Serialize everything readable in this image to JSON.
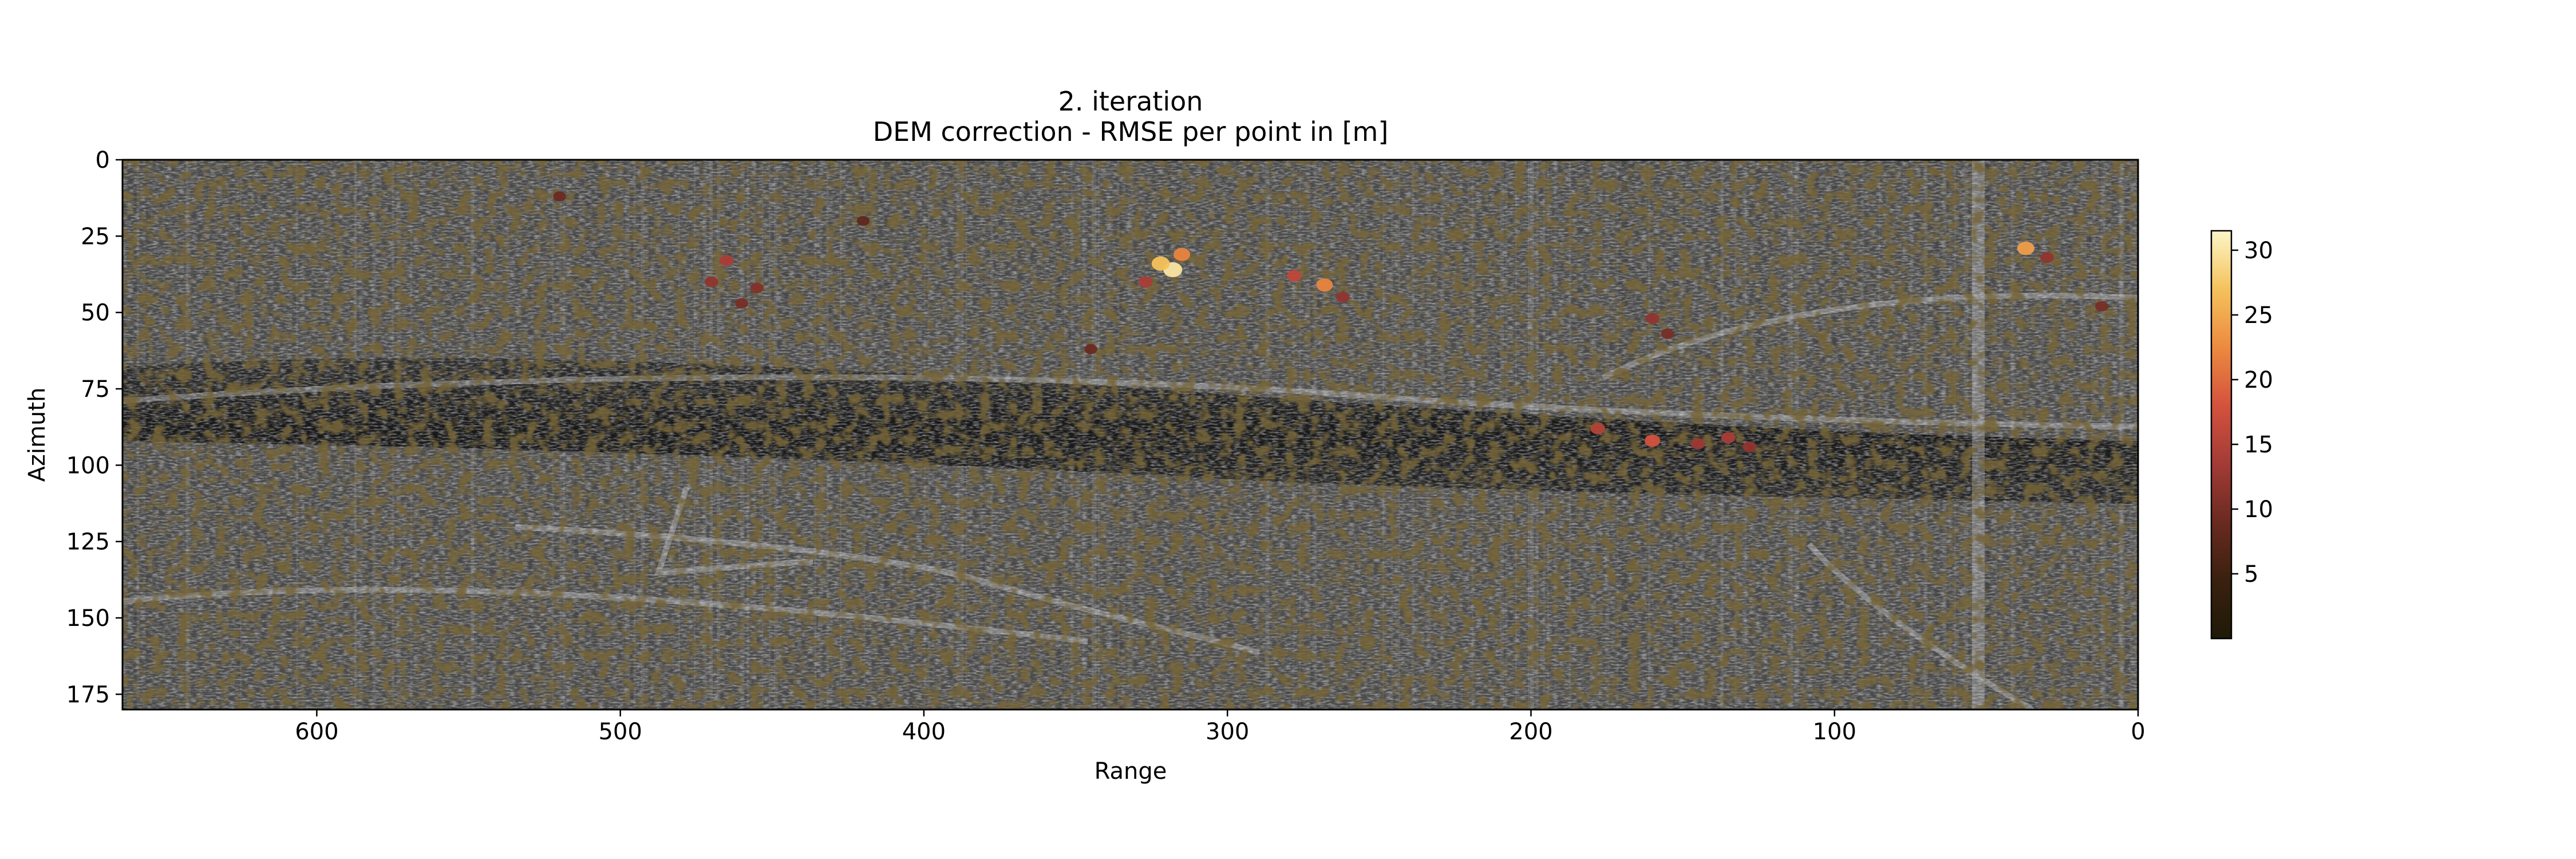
{
  "chart_data": {
    "type": "heatmap",
    "title_line1": "2. iteration",
    "title_line2": "DEM correction - RMSE per point in [m]",
    "xlabel": "Range",
    "ylabel": "Azimuth",
    "xlim": [
      664,
      0
    ],
    "ylim": [
      180,
      0
    ],
    "x_ticks": [
      600,
      500,
      400,
      300,
      200,
      100,
      0
    ],
    "y_ticks": [
      0,
      25,
      50,
      75,
      100,
      125,
      150,
      175
    ],
    "colorbar": {
      "label": "",
      "range": [
        0,
        31.5
      ],
      "ticks": [
        5,
        10,
        15,
        20,
        25,
        30
      ],
      "colormap": [
        "#1e1a06",
        "#3a200f",
        "#6a2a20",
        "#a33b36",
        "#d4523d",
        "#ec8a3f",
        "#f4c25c",
        "#fdf6c8"
      ]
    },
    "background": "grayscale SAR amplitude image",
    "grid": false,
    "highlight_points": [
      {
        "range": 465,
        "azimuth": 33,
        "rmse": 14
      },
      {
        "range": 470,
        "azimuth": 40,
        "rmse": 12
      },
      {
        "range": 455,
        "azimuth": 42,
        "rmse": 11
      },
      {
        "range": 460,
        "azimuth": 47,
        "rmse": 10
      },
      {
        "range": 318,
        "azimuth": 36,
        "rmse": 30
      },
      {
        "range": 322,
        "azimuth": 34,
        "rmse": 27
      },
      {
        "range": 315,
        "azimuth": 31,
        "rmse": 22
      },
      {
        "range": 327,
        "azimuth": 40,
        "rmse": 14
      },
      {
        "range": 268,
        "azimuth": 41,
        "rmse": 22
      },
      {
        "range": 278,
        "azimuth": 38,
        "rmse": 16
      },
      {
        "range": 262,
        "azimuth": 45,
        "rmse": 12
      },
      {
        "range": 520,
        "azimuth": 12,
        "rmse": 9
      },
      {
        "range": 160,
        "azimuth": 52,
        "rmse": 12
      },
      {
        "range": 155,
        "azimuth": 57,
        "rmse": 10
      },
      {
        "range": 178,
        "azimuth": 88,
        "rmse": 15
      },
      {
        "range": 160,
        "azimuth": 92,
        "rmse": 18
      },
      {
        "range": 145,
        "azimuth": 93,
        "rmse": 13
      },
      {
        "range": 135,
        "azimuth": 91,
        "rmse": 14
      },
      {
        "range": 128,
        "azimuth": 94,
        "rmse": 12
      },
      {
        "range": 37,
        "azimuth": 29,
        "rmse": 24
      },
      {
        "range": 30,
        "azimuth": 32,
        "rmse": 12
      },
      {
        "range": 12,
        "azimuth": 48,
        "rmse": 10
      },
      {
        "range": 345,
        "azimuth": 62,
        "rmse": 9
      },
      {
        "range": 420,
        "azimuth": 20,
        "rmse": 8
      }
    ]
  }
}
